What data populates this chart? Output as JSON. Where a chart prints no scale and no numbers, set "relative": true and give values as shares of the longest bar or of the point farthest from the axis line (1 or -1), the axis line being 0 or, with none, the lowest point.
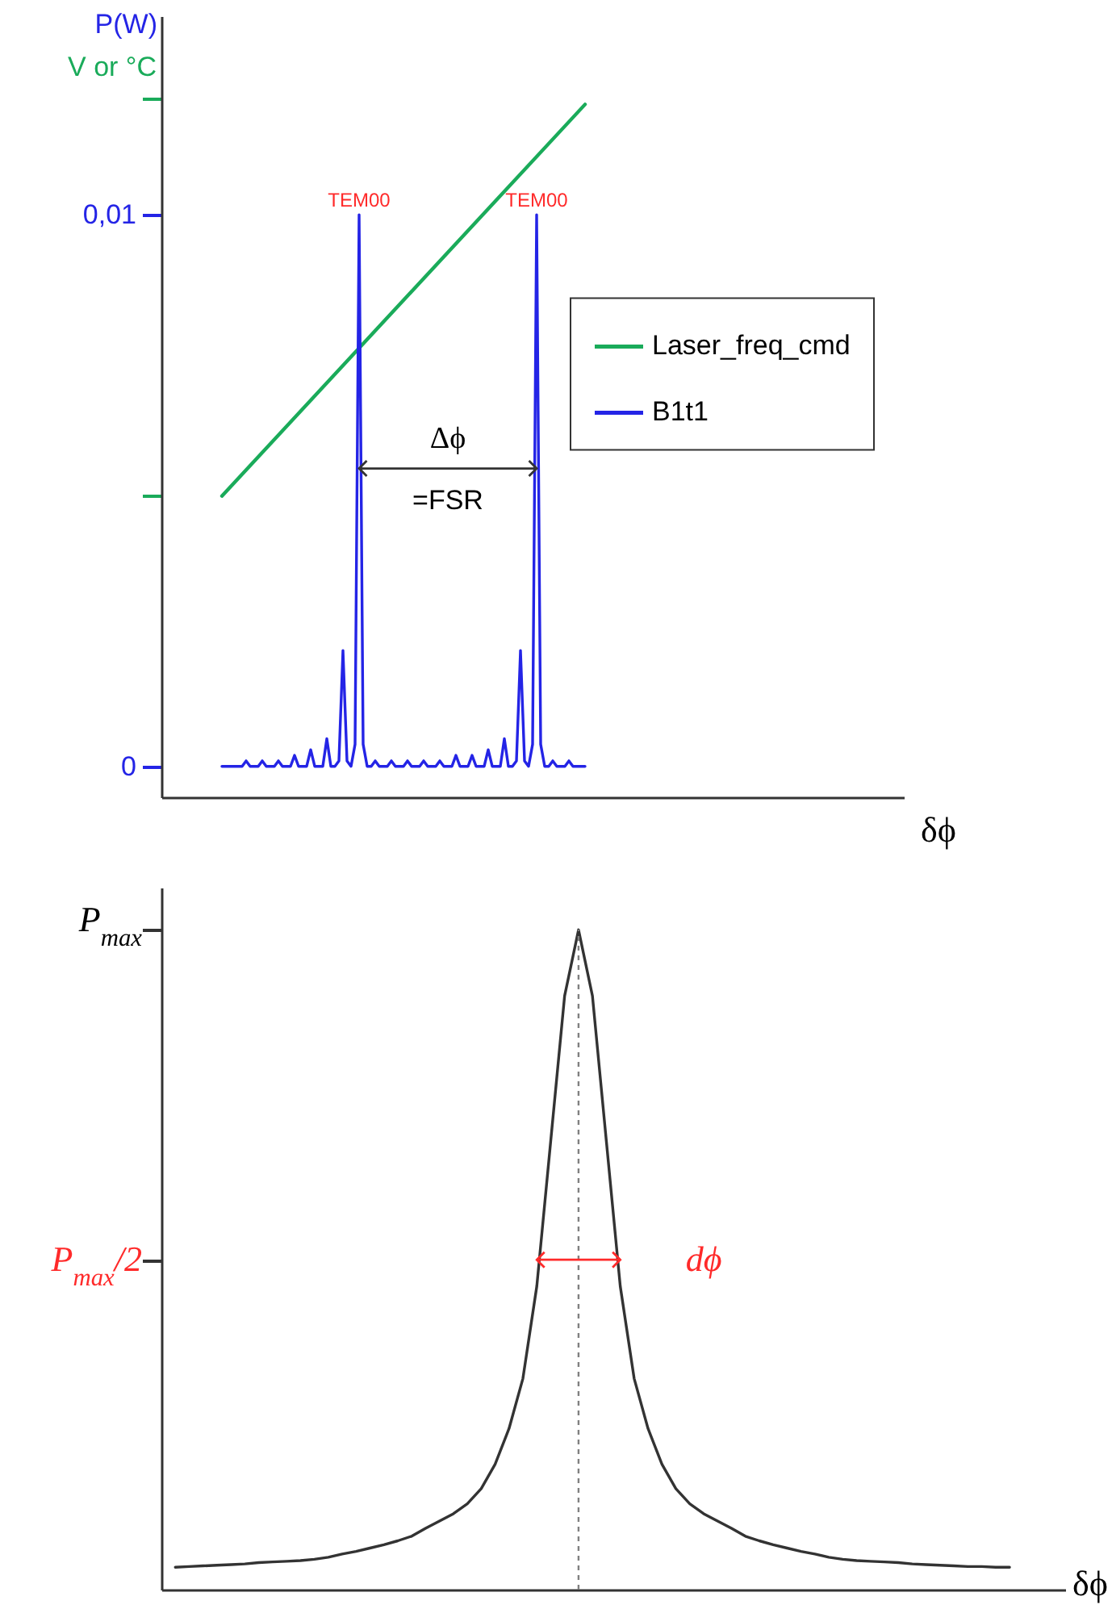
{
  "chart_data": [
    {
      "type": "line",
      "ylabel": "P(W)",
      "y2label": "V or °C",
      "xlabel": "δϕ",
      "tick_labels": "y",
      "legend": "right",
      "categories": [
        null,
        null,
        null,
        null,
        null,
        null,
        null,
        null,
        null,
        null,
        null,
        null,
        null,
        null,
        null,
        null,
        null,
        null,
        null,
        null,
        null,
        null,
        null,
        null,
        null,
        null,
        null,
        null,
        null,
        null,
        null,
        null,
        null,
        null,
        null,
        null,
        null,
        null,
        null,
        null,
        null,
        null,
        null,
        null,
        null,
        null,
        null,
        null,
        null,
        null,
        null,
        null,
        null,
        null,
        null,
        null,
        null,
        null,
        null,
        null,
        null,
        null,
        null,
        null,
        null,
        null,
        null,
        null,
        null,
        null,
        null,
        null,
        null,
        null,
        null,
        null,
        null,
        null,
        null,
        null,
        null,
        null,
        null,
        null,
        null,
        null,
        null,
        null,
        null,
        null,
        null,
        null,
        null,
        null,
        null,
        null,
        null,
        null,
        null,
        null,
        null,
        null,
        null,
        null,
        null,
        null,
        null,
        null,
        null,
        null,
        null,
        null,
        null,
        null,
        null,
        null,
        null,
        null,
        null,
        null,
        null,
        null,
        null,
        null,
        null,
        null,
        null,
        null,
        null,
        null,
        null,
        null,
        null,
        null,
        null,
        null,
        null,
        null,
        null,
        null,
        null,
        null,
        null,
        null,
        null,
        null,
        null,
        null,
        null,
        null,
        null,
        null,
        null,
        null,
        null,
        null,
        null,
        null,
        null,
        null,
        null,
        null,
        null,
        null,
        null,
        null,
        null,
        null,
        null,
        null,
        null,
        null,
        null,
        null,
        null,
        null,
        null,
        null,
        null,
        null,
        null,
        null,
        null,
        null,
        null
      ],
      "ylim": [
        -0.00056,
        0.0136
      ],
      "yticks": [
        0,
        {
          "value": 0.0049,
          "label": null
        },
        {
          "value": 0.01,
          "label": "0,01"
        },
        {
          "value": 0.0121,
          "label": null
        }
      ],
      "series": [
        {
          "name": "Laser_freq_cmd",
          "color": "#1aab5a",
          "values": [
            null,
            null,
            null,
            null,
            null,
            null,
            null,
            null,
            null,
            null,
            null,
            null,
            null,
            null,
            null,
            0.0049,
            null,
            null,
            null,
            null,
            null,
            null,
            null,
            null,
            null,
            null,
            null,
            null,
            null,
            null,
            null,
            null,
            null,
            null,
            null,
            null,
            null,
            null,
            null,
            null,
            null,
            null,
            null,
            null,
            null,
            null,
            null,
            null,
            null,
            null,
            null,
            null,
            null,
            null,
            null,
            null,
            null,
            null,
            null,
            null,
            null,
            null,
            null,
            null,
            null,
            null,
            null,
            null,
            null,
            null,
            null,
            null,
            null,
            null,
            null,
            null,
            null,
            null,
            null,
            null,
            null,
            null,
            null,
            null,
            null,
            null,
            null,
            null,
            null,
            null,
            null,
            null,
            null,
            null,
            null,
            null,
            null,
            null,
            null,
            null,
            null,
            null,
            null,
            null,
            null,
            0.012,
            null,
            null,
            null,
            null,
            null,
            null,
            null,
            null,
            null,
            null,
            null,
            null,
            null,
            null,
            null,
            null,
            null,
            null,
            null,
            null,
            null,
            null,
            null,
            null,
            null,
            null,
            null,
            null,
            null,
            null,
            null,
            null,
            null,
            null,
            null,
            null,
            null,
            null,
            null,
            null,
            null,
            null,
            null,
            null,
            null,
            null,
            null,
            null,
            null,
            null,
            null,
            null,
            null,
            null,
            null,
            null,
            null,
            null,
            null,
            null,
            null,
            null,
            null,
            null,
            null,
            null,
            null,
            null,
            null,
            null,
            null,
            null,
            null,
            null,
            null,
            null,
            null,
            null,
            null
          ]
        },
        {
          "name": "B1t1",
          "color": "#2424e6",
          "values": [
            null,
            null,
            null,
            null,
            null,
            null,
            null,
            null,
            null,
            null,
            null,
            null,
            null,
            null,
            null,
            0,
            0,
            0,
            0,
            0,
            0,
            0.0001,
            0,
            0,
            0,
            0.0001,
            0,
            0,
            0,
            0.0001,
            0,
            0,
            0,
            0.0002,
            0,
            0,
            0,
            0.0003,
            0,
            0,
            0,
            0.0005,
            0,
            0,
            0.0001,
            0.0021,
            0.0001,
            0,
            0.0004,
            0.01,
            0.0004,
            0,
            0,
            0.0001,
            0,
            0,
            0,
            0.0001,
            0,
            0,
            0,
            0.0001,
            0,
            0,
            0,
            0.0001,
            0,
            0,
            0,
            0.0001,
            0,
            0,
            0,
            0.0002,
            0,
            0,
            0,
            0.0002,
            0,
            0,
            0,
            0.0003,
            0,
            0,
            0,
            0.0005,
            0,
            0,
            0.0001,
            0.0021,
            0.0001,
            0,
            0.0004,
            0.01,
            0.0004,
            0,
            0,
            0.0001,
            0,
            0,
            0,
            0.0001,
            0,
            0,
            0,
            0,
            null,
            null,
            null,
            null,
            null,
            null,
            null,
            null,
            null,
            null,
            null,
            null,
            null,
            null,
            null,
            null,
            null,
            null,
            null,
            null,
            null,
            null,
            null,
            null,
            null,
            null,
            null,
            null,
            null,
            null,
            null,
            null,
            null,
            null,
            null,
            null,
            null,
            null,
            null,
            null,
            null,
            null,
            null,
            null,
            null,
            null,
            null,
            null,
            null,
            null,
            null,
            null,
            null,
            null,
            null,
            null,
            null,
            null,
            null,
            null,
            null,
            null,
            null,
            null,
            null,
            null,
            null,
            null,
            null,
            null,
            null,
            null,
            null,
            null,
            null,
            null,
            null,
            null,
            null
          ]
        }
      ],
      "annotations": [
        {
          "text": "TEM00",
          "y": 0.01
        },
        {
          "text": "TEM00",
          "y": 0.01
        },
        "Δϕ",
        "=FSR"
      ]
    },
    {
      "type": "line",
      "xlabel": "δϕ",
      "relative": true,
      "tick_labels": false,
      "categories": [
        null,
        null,
        null,
        null,
        null,
        null,
        null,
        null,
        null,
        null,
        null,
        null,
        null,
        null,
        null,
        null,
        null,
        null,
        null,
        null,
        null,
        null,
        null,
        null,
        null,
        null,
        null,
        null,
        null,
        null,
        null,
        null,
        null,
        null,
        null,
        null,
        null,
        null,
        null,
        null,
        null,
        null,
        null,
        null,
        null,
        null,
        null,
        null,
        null,
        null,
        null,
        null,
        null,
        null,
        null,
        null,
        null,
        null,
        null,
        null,
        null,
        null,
        null,
        null,
        null,
        null
      ],
      "series": [
        {
          "color": "#333333",
          "values": [
            null,
            0.034,
            0.035,
            0.036,
            0.037,
            0.038,
            0.039,
            0.041,
            0.042,
            0.043,
            0.044,
            0.046,
            0.049,
            0.054,
            0.058,
            0.063,
            0.068,
            0.074,
            0.081,
            0.093,
            0.104,
            0.115,
            0.13,
            0.153,
            0.19,
            0.244,
            0.32,
            0.46,
            0.68,
            0.9,
            1,
            0.9,
            0.68,
            0.46,
            0.32,
            0.244,
            0.19,
            0.153,
            0.13,
            0.115,
            0.104,
            0.093,
            0.081,
            0.074,
            0.068,
            0.063,
            0.058,
            0.054,
            0.049,
            0.046,
            0.044,
            0.043,
            0.042,
            0.041,
            0.039,
            0.038,
            0.037,
            0.036,
            0.035,
            0.035,
            0.034,
            0.034,
            null,
            null,
            null,
            null
          ]
        }
      ],
      "annotations": [
        "P$_{max}$",
        "P$_{max}$/2",
        "dϕ"
      ]
    }
  ]
}
